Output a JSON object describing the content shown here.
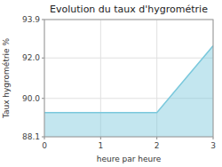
{
  "chart_data": {
    "type": "area",
    "title": "Evolution du taux d'hygrométrie",
    "xlabel": "heure par heure",
    "ylabel": "Taux hygrométrie %",
    "x": [
      0,
      2,
      3
    ],
    "series": [
      {
        "color": "#7ac8dc",
        "values": [
          89.3,
          89.3,
          92.6
        ]
      }
    ],
    "xlim": [
      0,
      3
    ],
    "ylim": [
      88.1,
      93.9
    ],
    "xticks": [
      0,
      1,
      2,
      3
    ],
    "yticks": [
      88.1,
      {
        "value": 90,
        "label": "90.0"
      },
      {
        "value": 92,
        "label": "92.0"
      },
      93.9
    ],
    "grid": true
  }
}
